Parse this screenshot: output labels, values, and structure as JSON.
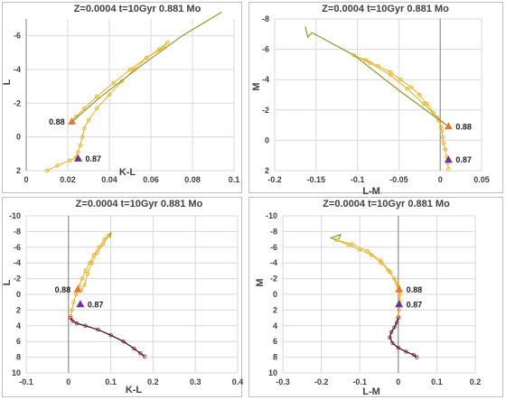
{
  "chart_data": [
    {
      "type": "scatter",
      "title": "Z=0.0004   t=10Gyr   0.881 Mo",
      "xlabel": "K-L",
      "ylabel": "L",
      "xlim": [
        0,
        0.1
      ],
      "ylim": [
        2,
        -7
      ],
      "xticks": [
        0,
        0.02,
        0.04,
        0.06,
        0.08,
        0.1
      ],
      "yticks": [
        2,
        0,
        -2,
        -4,
        -6
      ],
      "grid": "both",
      "series": [
        {
          "color": "#e6b325",
          "marker": "circle",
          "x": [
            0.01,
            0.015,
            0.021,
            0.024,
            0.025,
            0.026,
            0.027,
            0.028,
            0.03,
            0.034,
            0.04,
            0.046,
            0.052,
            0.058,
            0.064,
            0.068,
            0.066,
            0.058,
            0.05,
            0.042,
            0.034,
            0.028,
            0.024,
            0.022
          ],
          "y": [
            2.0,
            1.7,
            1.4,
            1.2,
            0.9,
            0.5,
            0.0,
            -0.5,
            -1.0,
            -1.7,
            -2.5,
            -3.3,
            -4.0,
            -4.7,
            -5.2,
            -5.6,
            -5.3,
            -4.7,
            -4.0,
            -3.2,
            -2.4,
            -1.7,
            -1.2,
            -0.9
          ]
        },
        {
          "color": "#8c9a2d",
          "marker": "line",
          "x": [
            0.022,
            0.035,
            0.055,
            0.075,
            0.094
          ],
          "y": [
            -0.9,
            -2.3,
            -4.2,
            -6.0,
            -7.4
          ]
        }
      ],
      "annotations": [
        {
          "text": "0.88",
          "x": 0.022,
          "y": -0.9,
          "marker": "triangle",
          "color": "#e07b39"
        },
        {
          "text": "0.87",
          "x": 0.025,
          "y": 1.3,
          "marker": "triangle",
          "color": "#7030a0"
        }
      ]
    },
    {
      "type": "scatter",
      "title": "Z=0.0004   t=10Gyr   0.881 Mo",
      "xlabel": "L-M",
      "ylabel": "M",
      "xlim": [
        -0.2,
        0.05
      ],
      "ylim": [
        2,
        -8
      ],
      "xticks": [
        -0.2,
        -0.15,
        -0.1,
        -0.05,
        0,
        0.05
      ],
      "yticks": [
        2,
        0,
        -2,
        -4,
        -6,
        -8
      ],
      "grid": "both",
      "series": [
        {
          "color": "#e6b325",
          "marker": "circle",
          "x": [
            0.01,
            0.009,
            0.008,
            0.006,
            0.004,
            0.003,
            0.002,
            0.001,
            -0.002,
            -0.008,
            -0.016,
            -0.025,
            -0.035,
            -0.048,
            -0.06,
            -0.075,
            -0.09,
            -0.104,
            -0.085,
            -0.06,
            -0.04,
            -0.02,
            -0.003,
            0.01
          ],
          "y": [
            1.9,
            1.5,
            1.1,
            0.6,
            0.2,
            -0.2,
            -0.6,
            -0.9,
            -1.3,
            -1.8,
            -2.4,
            -3.0,
            -3.5,
            -4.0,
            -4.5,
            -4.9,
            -5.3,
            -5.6,
            -5.1,
            -4.3,
            -3.4,
            -2.4,
            -1.5,
            -0.9
          ]
        },
        {
          "color": "#8c9a2d",
          "marker": "line",
          "x": [
            0.01,
            -0.05,
            -0.104,
            -0.155,
            -0.16,
            -0.163
          ],
          "y": [
            -0.9,
            -3.3,
            -5.6,
            -7.1,
            -6.8,
            -7.5
          ]
        }
      ],
      "annotations": [
        {
          "text": "0.88",
          "x": 0.01,
          "y": -0.9,
          "marker": "triangle",
          "color": "#e07b39"
        },
        {
          "text": "0.87",
          "x": 0.01,
          "y": 1.3,
          "marker": "triangle",
          "color": "#7030a0"
        }
      ]
    },
    {
      "type": "scatter",
      "title": "Z=0.0004   t=10Gyr   0.881 Mo",
      "xlabel": "K-L",
      "ylabel": "L",
      "xlim": [
        -0.1,
        0.4
      ],
      "ylim": [
        10,
        -10
      ],
      "xticks": [
        -0.1,
        0,
        0.1,
        0.2,
        0.3,
        0.4
      ],
      "yticks": [
        10,
        8,
        6,
        4,
        2,
        0,
        -2,
        -4,
        -6,
        -8,
        -10
      ],
      "grid": "both",
      "series": [
        {
          "color": "#e6b325",
          "marker": "circle",
          "x": [
            0.005,
            0.008,
            0.012,
            0.018,
            0.025,
            0.032,
            0.04,
            0.05,
            0.06,
            0.072,
            0.085,
            0.095,
            0.082,
            0.068,
            0.055,
            0.045,
            0.038,
            0.03
          ],
          "y": [
            2.8,
            2.0,
            1.0,
            0.0,
            -1.0,
            -2.0,
            -3.0,
            -4.0,
            -5.0,
            -6.0,
            -7.0,
            -7.5,
            -6.4,
            -5.3,
            -4.0,
            -2.6,
            -1.2,
            -0.5
          ]
        },
        {
          "color": "#8c9a2d",
          "marker": "line",
          "x": [
            0.095,
            0.1,
            0.098
          ],
          "y": [
            -7.5,
            -7.8,
            -7.2
          ]
        },
        {
          "color": "#c0306a",
          "marker": "circle",
          "x": [
            0.005,
            0.01,
            0.02,
            0.04,
            0.07,
            0.1,
            0.13,
            0.155,
            0.17,
            0.18
          ],
          "y": [
            3.0,
            3.4,
            3.7,
            4.0,
            4.5,
            5.2,
            6.0,
            6.9,
            7.5,
            7.9
          ]
        },
        {
          "color": "#202020",
          "marker": "line",
          "x": [
            0.005,
            0.01,
            0.02,
            0.04,
            0.07,
            0.1,
            0.13,
            0.155,
            0.17,
            0.18
          ],
          "y": [
            3.0,
            3.4,
            3.7,
            4.0,
            4.5,
            5.2,
            6.0,
            6.9,
            7.5,
            7.9
          ]
        }
      ],
      "annotations": [
        {
          "text": "0.88",
          "x": 0.022,
          "y": -0.6,
          "marker": "triangle",
          "color": "#e07b39"
        },
        {
          "text": "0.87",
          "x": 0.028,
          "y": 1.3,
          "marker": "triangle",
          "color": "#7030a0"
        }
      ]
    },
    {
      "type": "scatter",
      "title": "Z=0.0004   t=10Gyr   0.881 Mo",
      "xlabel": "L-M",
      "ylabel": "M",
      "xlim": [
        -0.3,
        0.2
      ],
      "ylim": [
        10,
        -10
      ],
      "xticks": [
        -0.3,
        -0.2,
        -0.1,
        0,
        0.1,
        0.2
      ],
      "yticks": [
        10,
        8,
        6,
        4,
        2,
        0,
        -2,
        -4,
        -6,
        -8,
        -10
      ],
      "grid": "both",
      "series": [
        {
          "color": "#e6b325",
          "marker": "circle",
          "x": [
            0.0,
            0.002,
            0.004,
            0.004,
            0.0,
            -0.01,
            -0.025,
            -0.045,
            -0.07,
            -0.1,
            -0.13,
            -0.16,
            -0.12,
            -0.08,
            -0.045,
            -0.02,
            -0.005,
            0.002
          ],
          "y": [
            2.8,
            2.0,
            1.0,
            0.0,
            -1.0,
            -2.0,
            -3.0,
            -4.0,
            -5.0,
            -5.7,
            -6.3,
            -6.9,
            -6.4,
            -5.5,
            -4.3,
            -2.8,
            -1.4,
            -0.6
          ]
        },
        {
          "color": "#8c9a2d",
          "marker": "line",
          "x": [
            -0.16,
            -0.175,
            -0.15,
            -0.155
          ],
          "y": [
            -6.9,
            -7.2,
            -7.6,
            -7.0
          ]
        },
        {
          "color": "#c0306a",
          "marker": "circle",
          "x": [
            0.0,
            -0.004,
            -0.01,
            -0.018,
            -0.022,
            -0.015,
            0.0,
            0.02,
            0.04,
            0.048
          ],
          "y": [
            3.0,
            3.6,
            4.2,
            4.8,
            5.5,
            6.2,
            6.8,
            7.3,
            7.7,
            8.0
          ]
        },
        {
          "color": "#202020",
          "marker": "line",
          "x": [
            0.0,
            -0.004,
            -0.01,
            -0.018,
            -0.022,
            -0.015,
            0.0,
            0.02,
            0.04,
            0.048
          ],
          "y": [
            3.0,
            3.6,
            4.2,
            4.8,
            5.5,
            6.2,
            6.8,
            7.3,
            7.7,
            8.0
          ]
        }
      ],
      "annotations": [
        {
          "text": "0.88",
          "x": 0.002,
          "y": -0.6,
          "marker": "triangle",
          "color": "#e07b39"
        },
        {
          "text": "0.87",
          "x": 0.002,
          "y": 1.3,
          "marker": "triangle",
          "color": "#7030a0"
        }
      ]
    }
  ]
}
